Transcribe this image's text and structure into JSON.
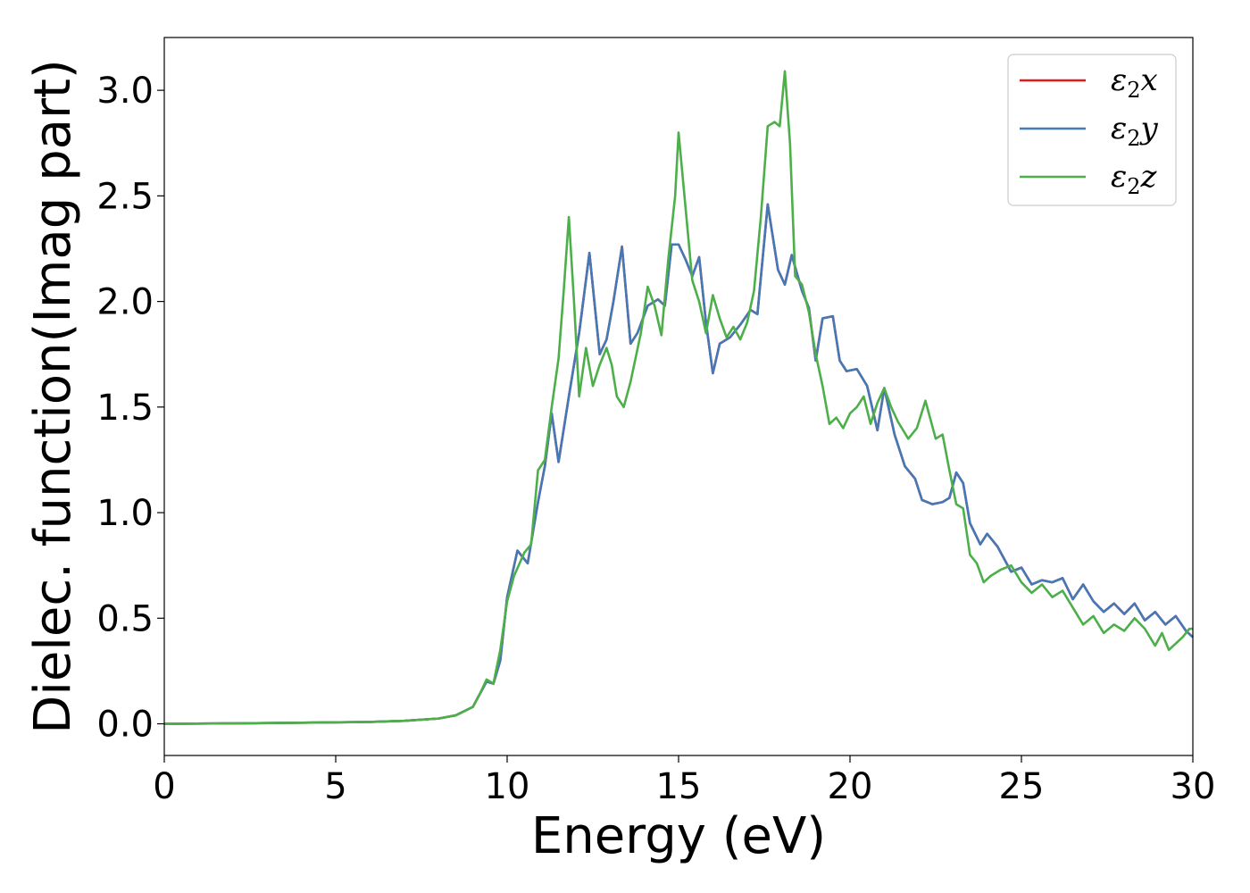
{
  "chart_data": {
    "type": "line",
    "xlabel": "Energy (eV)",
    "ylabel": "Dielec. function(Imag part)",
    "xlim": [
      0,
      30
    ],
    "ylim": [
      -0.15,
      3.25
    ],
    "xticks": [
      0,
      5,
      10,
      15,
      20,
      25,
      30
    ],
    "xtick_labels": [
      "0",
      "5",
      "10",
      "15",
      "20",
      "25",
      "30"
    ],
    "yticks": [
      0.0,
      0.5,
      1.0,
      1.5,
      2.0,
      2.5,
      3.0
    ],
    "ytick_labels": [
      "0.0",
      "0.5",
      "1.0",
      "1.5",
      "2.0",
      "2.5",
      "3.0"
    ],
    "grid": false,
    "legend_position": "top-right",
    "series": [
      {
        "name": "ε₂x",
        "legend_base": "ε",
        "legend_sub": "2",
        "legend_var": "x",
        "color": "#e41a1c",
        "x": [
          0,
          2,
          4,
          6,
          7,
          8,
          8.5,
          9,
          9.2,
          9.4,
          9.6,
          9.8,
          10,
          10.3,
          10.6,
          10.9,
          11.1,
          11.3,
          11.5,
          11.8,
          12.1,
          12.4,
          12.7,
          12.9,
          13.1,
          13.35,
          13.6,
          13.8,
          14.1,
          14.4,
          14.6,
          14.8,
          15.0,
          15.2,
          15.4,
          15.6,
          15.8,
          16.0,
          16.2,
          16.5,
          16.8,
          17.1,
          17.3,
          17.6,
          17.9,
          18.1,
          18.3,
          18.6,
          18.8,
          19.0,
          19.2,
          19.5,
          19.7,
          19.9,
          20.2,
          20.5,
          20.8,
          21.0,
          21.3,
          21.6,
          21.9,
          22.1,
          22.4,
          22.7,
          22.9,
          23.1,
          23.3,
          23.5,
          23.8,
          24.0,
          24.3,
          24.7,
          25.0,
          25.3,
          25.6,
          25.9,
          26.2,
          26.5,
          26.8,
          27.1,
          27.4,
          27.7,
          28.0,
          28.3,
          28.6,
          28.9,
          29.2,
          29.5,
          29.8,
          30
        ],
        "y": [
          0.0,
          0.002,
          0.005,
          0.009,
          0.014,
          0.025,
          0.04,
          0.08,
          0.14,
          0.2,
          0.19,
          0.3,
          0.6,
          0.82,
          0.76,
          1.05,
          1.22,
          1.47,
          1.24,
          1.55,
          1.85,
          2.23,
          1.75,
          1.82,
          2.0,
          2.26,
          1.8,
          1.85,
          1.98,
          2.01,
          1.98,
          2.27,
          2.27,
          2.2,
          2.12,
          2.21,
          1.9,
          1.66,
          1.8,
          1.83,
          1.89,
          1.96,
          1.94,
          2.46,
          2.15,
          2.08,
          2.22,
          2.05,
          1.97,
          1.72,
          1.92,
          1.93,
          1.72,
          1.67,
          1.68,
          1.6,
          1.39,
          1.59,
          1.37,
          1.22,
          1.16,
          1.06,
          1.04,
          1.05,
          1.07,
          1.19,
          1.14,
          0.95,
          0.85,
          0.9,
          0.84,
          0.72,
          0.74,
          0.66,
          0.68,
          0.67,
          0.69,
          0.59,
          0.66,
          0.58,
          0.53,
          0.57,
          0.52,
          0.57,
          0.49,
          0.53,
          0.47,
          0.51,
          0.44,
          0.41
        ]
      },
      {
        "name": "ε₂y",
        "legend_base": "ε",
        "legend_sub": "2",
        "legend_var": "y",
        "color": "#4479b8",
        "x": [
          0,
          2,
          4,
          6,
          7,
          8,
          8.5,
          9,
          9.2,
          9.4,
          9.6,
          9.8,
          10,
          10.3,
          10.6,
          10.9,
          11.1,
          11.3,
          11.5,
          11.8,
          12.1,
          12.4,
          12.7,
          12.9,
          13.1,
          13.35,
          13.6,
          13.8,
          14.1,
          14.4,
          14.6,
          14.8,
          15.0,
          15.2,
          15.4,
          15.6,
          15.8,
          16.0,
          16.2,
          16.5,
          16.8,
          17.1,
          17.3,
          17.6,
          17.9,
          18.1,
          18.3,
          18.6,
          18.8,
          19.0,
          19.2,
          19.5,
          19.7,
          19.9,
          20.2,
          20.5,
          20.8,
          21.0,
          21.3,
          21.6,
          21.9,
          22.1,
          22.4,
          22.7,
          22.9,
          23.1,
          23.3,
          23.5,
          23.8,
          24.0,
          24.3,
          24.7,
          25.0,
          25.3,
          25.6,
          25.9,
          26.2,
          26.5,
          26.8,
          27.1,
          27.4,
          27.7,
          28.0,
          28.3,
          28.6,
          28.9,
          29.2,
          29.5,
          29.8,
          30
        ],
        "y": [
          0.0,
          0.002,
          0.005,
          0.009,
          0.014,
          0.025,
          0.04,
          0.08,
          0.14,
          0.2,
          0.19,
          0.3,
          0.6,
          0.82,
          0.76,
          1.05,
          1.22,
          1.47,
          1.24,
          1.55,
          1.85,
          2.23,
          1.75,
          1.82,
          2.0,
          2.26,
          1.8,
          1.85,
          1.98,
          2.01,
          1.98,
          2.27,
          2.27,
          2.2,
          2.12,
          2.21,
          1.9,
          1.66,
          1.8,
          1.83,
          1.89,
          1.96,
          1.94,
          2.46,
          2.15,
          2.08,
          2.22,
          2.05,
          1.97,
          1.72,
          1.92,
          1.93,
          1.72,
          1.67,
          1.68,
          1.6,
          1.39,
          1.59,
          1.37,
          1.22,
          1.16,
          1.06,
          1.04,
          1.05,
          1.07,
          1.19,
          1.14,
          0.95,
          0.85,
          0.9,
          0.84,
          0.72,
          0.74,
          0.66,
          0.68,
          0.67,
          0.69,
          0.59,
          0.66,
          0.58,
          0.53,
          0.57,
          0.52,
          0.57,
          0.49,
          0.53,
          0.47,
          0.51,
          0.44,
          0.41
        ]
      },
      {
        "name": "ε₂z",
        "legend_base": "ε",
        "legend_sub": "2",
        "legend_var": "z",
        "color": "#4daf4a",
        "x": [
          0,
          2,
          4,
          6,
          7,
          8,
          8.5,
          9,
          9.2,
          9.4,
          9.6,
          9.8,
          10,
          10.2,
          10.5,
          10.7,
          10.9,
          11.1,
          11.3,
          11.5,
          11.65,
          11.8,
          11.95,
          12.1,
          12.3,
          12.5,
          12.7,
          12.9,
          13.05,
          13.2,
          13.4,
          13.6,
          13.9,
          14.1,
          14.3,
          14.5,
          14.7,
          14.9,
          15.0,
          15.2,
          15.4,
          15.6,
          15.8,
          16.0,
          16.2,
          16.4,
          16.6,
          16.8,
          17.0,
          17.2,
          17.4,
          17.6,
          17.8,
          17.95,
          18.1,
          18.25,
          18.4,
          18.6,
          18.8,
          19.0,
          19.2,
          19.4,
          19.6,
          19.8,
          20.0,
          20.2,
          20.4,
          20.6,
          20.8,
          21.0,
          21.2,
          21.4,
          21.7,
          21.95,
          22.2,
          22.5,
          22.7,
          22.9,
          23.1,
          23.3,
          23.5,
          23.7,
          23.9,
          24.1,
          24.4,
          24.7,
          25.0,
          25.3,
          25.6,
          25.9,
          26.2,
          26.5,
          26.8,
          27.1,
          27.4,
          27.7,
          28.0,
          28.3,
          28.6,
          28.9,
          29.1,
          29.3,
          29.5,
          29.7,
          29.9,
          30
        ],
        "y": [
          0.0,
          0.002,
          0.005,
          0.009,
          0.014,
          0.025,
          0.04,
          0.08,
          0.14,
          0.21,
          0.19,
          0.35,
          0.58,
          0.7,
          0.81,
          0.85,
          1.2,
          1.25,
          1.5,
          1.73,
          2.05,
          2.4,
          2.0,
          1.55,
          1.78,
          1.6,
          1.7,
          1.78,
          1.7,
          1.55,
          1.5,
          1.62,
          1.85,
          2.07,
          1.98,
          1.84,
          2.2,
          2.5,
          2.8,
          2.45,
          2.1,
          2.0,
          1.85,
          2.03,
          1.92,
          1.83,
          1.88,
          1.82,
          1.9,
          2.05,
          2.4,
          2.83,
          2.85,
          2.83,
          3.09,
          2.75,
          2.12,
          2.08,
          1.95,
          1.75,
          1.6,
          1.42,
          1.45,
          1.4,
          1.47,
          1.5,
          1.55,
          1.42,
          1.52,
          1.59,
          1.5,
          1.43,
          1.35,
          1.4,
          1.53,
          1.35,
          1.37,
          1.2,
          1.04,
          1.02,
          0.8,
          0.76,
          0.67,
          0.7,
          0.73,
          0.75,
          0.67,
          0.62,
          0.66,
          0.6,
          0.63,
          0.55,
          0.47,
          0.51,
          0.43,
          0.47,
          0.44,
          0.5,
          0.45,
          0.37,
          0.43,
          0.35,
          0.38,
          0.41,
          0.45,
          0.45
        ]
      }
    ]
  }
}
